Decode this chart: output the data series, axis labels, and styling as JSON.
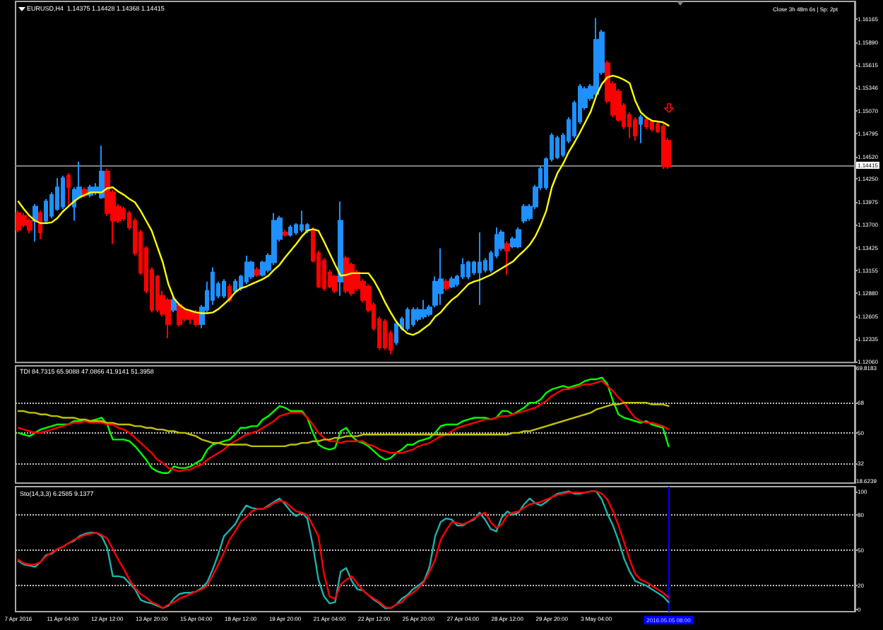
{
  "chart_data": [
    {
      "type": "candlestick",
      "title": "EURUSD,H4  1.14375 1.14428 1.14368 1.14415",
      "categories": [
        null,
        null,
        null,
        null,
        null,
        null,
        null,
        null,
        null,
        null,
        null,
        null,
        null,
        null,
        null,
        null,
        null,
        null,
        null,
        null,
        null,
        null,
        null,
        null,
        null,
        null,
        null,
        null,
        null,
        null,
        null,
        null,
        null,
        null,
        null,
        null,
        null,
        null,
        null,
        null,
        null,
        null,
        null,
        null,
        null,
        null,
        null,
        null,
        null,
        null,
        null,
        null,
        null,
        null,
        null,
        null,
        null,
        null,
        null,
        null,
        null,
        null,
        null,
        null,
        null,
        null,
        null,
        null,
        null,
        null,
        null,
        null,
        null,
        null,
        null,
        null,
        null,
        null,
        null,
        null,
        null,
        null,
        null,
        null,
        null,
        null,
        null,
        null,
        null,
        null,
        null,
        null,
        null,
        null,
        null,
        null,
        null,
        null,
        null,
        null,
        null,
        null,
        null,
        null,
        null,
        null,
        null,
        null,
        null,
        null,
        null,
        null,
        null,
        null,
        null,
        null,
        null,
        null
      ],
      "ohlc": [
        [
          1.1384,
          1.1387,
          1.1361,
          1.1364
        ],
        [
          1.1381,
          1.1384,
          1.1367,
          1.137
        ],
        [
          1.1375,
          1.1378,
          1.136,
          1.1364
        ],
        [
          1.1375,
          1.1395,
          1.135,
          1.1392
        ],
        [
          1.1384,
          1.1387,
          1.1353,
          1.1361
        ],
        [
          1.1375,
          1.1401,
          1.1372,
          1.1398
        ],
        [
          1.1381,
          1.1409,
          1.1378,
          1.1406
        ],
        [
          1.1389,
          1.1426,
          1.1387,
          1.1415
        ],
        [
          1.1392,
          1.1429,
          1.1389,
          1.1426
        ],
        [
          1.1429,
          1.1432,
          1.1392,
          1.1415
        ],
        [
          1.1392,
          1.1415,
          1.1375,
          1.1412
        ],
        [
          1.1403,
          1.1446,
          1.1401,
          1.1415
        ],
        [
          1.1412,
          1.1415,
          1.1403,
          1.1406
        ],
        [
          1.1406,
          1.1418,
          1.1403,
          1.1415
        ],
        [
          1.1409,
          1.142,
          1.1406,
          1.1415
        ],
        [
          1.1403,
          1.1465,
          1.1401,
          1.1434
        ],
        [
          1.1434,
          1.1437,
          1.1381,
          1.1384
        ],
        [
          1.1409,
          1.1412,
          1.1347,
          1.1375
        ],
        [
          1.1392,
          1.1395,
          1.1372,
          1.1375
        ],
        [
          1.1389,
          1.1392,
          1.1375,
          1.1378
        ],
        [
          1.1384,
          1.1387,
          1.1364,
          1.1367
        ],
        [
          1.1375,
          1.1378,
          1.1333,
          1.1336
        ],
        [
          1.1361,
          1.1364,
          1.131,
          1.1313
        ],
        [
          1.1342,
          1.1344,
          1.1288,
          1.1291
        ],
        [
          1.1316,
          1.1319,
          1.1265,
          1.1268
        ],
        [
          1.1308,
          1.131,
          1.1265,
          1.1268
        ],
        [
          1.1285,
          1.1291,
          1.126,
          1.1263
        ],
        [
          1.128,
          1.1282,
          1.1234,
          1.1251
        ],
        [
          1.1268,
          1.1285,
          1.1265,
          1.128
        ],
        [
          1.1274,
          1.1277,
          1.1248,
          1.1251
        ],
        [
          1.1268,
          1.1271,
          1.1254,
          1.1257
        ],
        [
          1.1265,
          1.1268,
          1.1251,
          1.1257
        ],
        [
          1.1265,
          1.1268,
          1.1248,
          1.1251
        ],
        [
          1.1251,
          1.1274,
          1.1246,
          1.1271
        ],
        [
          1.1268,
          1.1302,
          1.1265,
          1.1291
        ],
        [
          1.128,
          1.1319,
          1.1274,
          1.1313
        ],
        [
          1.1285,
          1.1302,
          1.1282,
          1.1299
        ],
        [
          1.1285,
          1.1305,
          1.1282,
          1.1302
        ],
        [
          1.1296,
          1.1299,
          1.1277,
          1.128
        ],
        [
          1.1291,
          1.1305,
          1.1288,
          1.1302
        ],
        [
          1.1294,
          1.131,
          1.1291,
          1.1308
        ],
        [
          1.1302,
          1.1333,
          1.1299,
          1.1325
        ],
        [
          1.1308,
          1.1327,
          1.1305,
          1.1325
        ],
        [
          1.1316,
          1.1319,
          1.1308,
          1.131
        ],
        [
          1.131,
          1.1327,
          1.1308,
          1.1325
        ],
        [
          1.1316,
          1.1336,
          1.1313,
          1.1333
        ],
        [
          1.1325,
          1.1384,
          1.1322,
          1.1375
        ],
        [
          1.1353,
          1.1381,
          1.135,
          1.1378
        ],
        [
          1.1361,
          1.1364,
          1.1356,
          1.1358
        ],
        [
          1.1358,
          1.137,
          1.1356,
          1.1367
        ],
        [
          1.1361,
          1.1372,
          1.1358,
          1.137
        ],
        [
          1.1364,
          1.1387,
          1.1361,
          1.137
        ],
        [
          1.1363,
          1.1372,
          1.136,
          1.137
        ],
        [
          1.1364,
          1.1367,
          1.1325,
          1.1327
        ],
        [
          1.1336,
          1.1339,
          1.1294,
          1.1296
        ],
        [
          1.1327,
          1.133,
          1.1291,
          1.1294
        ],
        [
          1.1313,
          1.1316,
          1.1294,
          1.1296
        ],
        [
          1.1308,
          1.131,
          1.1288,
          1.1291
        ],
        [
          1.1302,
          1.1398,
          1.1285,
          1.1375
        ],
        [
          1.133,
          1.1333,
          1.1288,
          1.1291
        ],
        [
          1.1322,
          1.1325,
          1.1285,
          1.1288
        ],
        [
          1.1313,
          1.1316,
          1.1291,
          1.1294
        ],
        [
          1.1302,
          1.1305,
          1.1277,
          1.128
        ],
        [
          1.1296,
          1.1299,
          1.1265,
          1.1268
        ],
        [
          1.1274,
          1.1277,
          1.1243,
          1.1246
        ],
        [
          1.1257,
          1.126,
          1.122,
          1.1223
        ],
        [
          1.1254,
          1.1257,
          1.122,
          1.1223
        ],
        [
          1.124,
          1.1243,
          1.1215,
          1.122
        ],
        [
          1.1229,
          1.1254,
          1.1226,
          1.1251
        ],
        [
          1.1246,
          1.126,
          1.1243,
          1.1257
        ],
        [
          1.1246,
          1.1271,
          1.1243,
          1.1268
        ],
        [
          1.1251,
          1.1271,
          1.1248,
          1.1268
        ],
        [
          1.1257,
          1.1271,
          1.1254,
          1.1268
        ],
        [
          1.126,
          1.128,
          1.1257,
          1.1268
        ],
        [
          1.1263,
          1.1274,
          1.126,
          1.1271
        ],
        [
          1.1274,
          1.1308,
          1.1271,
          1.1302
        ],
        [
          1.1288,
          1.1342,
          1.1274,
          1.1305
        ],
        [
          1.1302,
          1.1305,
          1.1291,
          1.1294
        ],
        [
          1.1296,
          1.1308,
          1.1294,
          1.1305
        ],
        [
          1.1299,
          1.131,
          1.1296,
          1.1308
        ],
        [
          1.1308,
          1.133,
          1.1305,
          1.1322
        ],
        [
          1.1308,
          1.1327,
          1.1305,
          1.1325
        ],
        [
          1.1313,
          1.1327,
          1.131,
          1.1325
        ],
        [
          1.1313,
          1.1361,
          1.1274,
          1.1325
        ],
        [
          1.1316,
          1.133,
          1.1313,
          1.1327
        ],
        [
          1.1316,
          1.1339,
          1.1313,
          1.1336
        ],
        [
          1.1333,
          1.1367,
          1.133,
          1.1358
        ],
        [
          1.1342,
          1.1364,
          1.1339,
          1.1361
        ],
        [
          1.1347,
          1.135,
          1.131,
          1.1339
        ],
        [
          1.1344,
          1.1356,
          1.1342,
          1.1353
        ],
        [
          1.1344,
          1.1367,
          1.1342,
          1.1364
        ],
        [
          1.1375,
          1.1395,
          1.1372,
          1.1392
        ],
        [
          1.1378,
          1.1395,
          1.1375,
          1.1392
        ],
        [
          1.1392,
          1.1418,
          1.1389,
          1.1415
        ],
        [
          1.1415,
          1.144,
          1.1412,
          1.1437
        ],
        [
          1.1415,
          1.1451,
          1.1412,
          1.1449
        ],
        [
          1.1449,
          1.148,
          1.1446,
          1.1477
        ],
        [
          1.1451,
          1.1477,
          1.1449,
          1.1474
        ],
        [
          1.1454,
          1.148,
          1.1451,
          1.1477
        ],
        [
          1.1471,
          1.1499,
          1.1468,
          1.1496
        ],
        [
          1.1477,
          1.1519,
          1.1474,
          1.1516
        ],
        [
          1.1494,
          1.1539,
          1.1491,
          1.1536
        ],
        [
          1.1511,
          1.1536,
          1.1508,
          1.1533
        ],
        [
          1.1522,
          1.1539,
          1.1519,
          1.1536
        ],
        [
          1.1527,
          1.1618,
          1.1525,
          1.1592
        ],
        [
          1.1553,
          1.1604,
          1.155,
          1.1601
        ],
        [
          1.1564,
          1.1567,
          1.1516,
          1.1519
        ],
        [
          1.1539,
          1.1542,
          1.1499,
          1.1502
        ],
        [
          1.153,
          1.1533,
          1.1494,
          1.1496
        ],
        [
          1.1513,
          1.1516,
          1.1485,
          1.1488
        ],
        [
          1.1502,
          1.1505,
          1.1474,
          1.1488
        ],
        [
          1.1496,
          1.1499,
          1.1471,
          1.1477
        ],
        [
          1.1491,
          1.1502,
          1.1468,
          1.1499
        ],
        [
          1.1496,
          1.1499,
          1.1485,
          1.1488
        ],
        [
          1.1494,
          1.1496,
          1.1482,
          1.1485
        ],
        [
          1.1491,
          1.1494,
          1.148,
          1.1482
        ],
        [
          1.1488,
          1.1491,
          1.1437,
          1.144
        ],
        [
          1.1471,
          1.1474,
          1.1437,
          1.144
        ]
      ],
      "colors": [
        "#ff0000",
        "#ff0000",
        "#ff0000",
        "#1e90ff",
        "#ff0000",
        "#1e90ff",
        "#1e90ff",
        "#1e90ff",
        "#1e90ff",
        "#ff0000",
        "#1e90ff",
        "#1e90ff",
        "#ff0000",
        "#1e90ff",
        "#1e90ff",
        "#1e90ff",
        "#ff0000",
        "#ff0000",
        "#ff0000",
        "#ff0000",
        "#ff0000",
        "#ff0000",
        "#ff0000",
        "#ff0000",
        "#ff0000",
        "#ff0000",
        "#ff0000",
        "#ff0000",
        "#1e90ff",
        "#ff0000",
        "#ff0000",
        "#ff0000",
        "#ff0000",
        "#1e90ff",
        "#1e90ff",
        "#1e90ff",
        "#1e90ff",
        "#1e90ff",
        "#ff0000",
        "#1e90ff",
        "#1e90ff",
        "#1e90ff",
        "#1e90ff",
        "#ff0000",
        "#1e90ff",
        "#1e90ff",
        "#1e90ff",
        "#1e90ff",
        "#ff0000",
        "#1e90ff",
        "#1e90ff",
        "#1e90ff",
        "#1e90ff",
        "#ff0000",
        "#ff0000",
        "#ff0000",
        "#ff0000",
        "#ff0000",
        "#1e90ff",
        "#ff0000",
        "#ff0000",
        "#ff0000",
        "#ff0000",
        "#ff0000",
        "#ff0000",
        "#ff0000",
        "#ff0000",
        "#ff0000",
        "#1e90ff",
        "#1e90ff",
        "#1e90ff",
        "#1e90ff",
        "#1e90ff",
        "#1e90ff",
        "#1e90ff",
        "#1e90ff",
        "#1e90ff",
        "#ff0000",
        "#1e90ff",
        "#1e90ff",
        "#1e90ff",
        "#1e90ff",
        "#1e90ff",
        "#1e90ff",
        "#1e90ff",
        "#1e90ff",
        "#1e90ff",
        "#1e90ff",
        "#ff0000",
        "#1e90ff",
        "#1e90ff",
        "#1e90ff",
        "#1e90ff",
        "#1e90ff",
        "#1e90ff",
        "#1e90ff",
        "#1e90ff",
        "#1e90ff",
        "#1e90ff",
        "#1e90ff",
        "#1e90ff",
        "#1e90ff",
        "#1e90ff",
        "#1e90ff",
        "#1e90ff",
        "#1e90ff",
        "#ff0000",
        "#ff0000",
        "#ff0000",
        "#ff0000",
        "#ff0000",
        "#ff0000",
        "#1e90ff",
        "#ff0000",
        "#ff0000",
        "#ff0000",
        "#ff0000",
        "#ff0000"
      ],
      "series": [
        {
          "type": "line",
          "color": "#ffff00",
          "values": [
            1.1398,
            1.1389,
            1.1381,
            1.1375,
            1.1372,
            1.1372,
            1.1373,
            1.1378,
            1.1386,
            1.1392,
            1.1398,
            1.1403,
            1.1406,
            1.1409,
            1.1409,
            1.1409,
            1.1414,
            1.1415,
            1.141,
            1.1406,
            1.1401,
            1.1397,
            1.1387,
            1.1375,
            1.1363,
            1.1344,
            1.1325,
            1.1299,
            1.1282,
            1.1274,
            1.1269,
            1.1267,
            1.1265,
            1.1264,
            1.1264,
            1.1265,
            1.1269,
            1.1275,
            1.1281,
            1.1289,
            1.1294,
            1.1296,
            1.1299,
            1.1302,
            1.1305,
            1.1309,
            1.1316,
            1.1322,
            1.1331,
            1.1339,
            1.1347,
            1.1356,
            1.1363,
            1.1365,
            1.1363,
            1.135,
            1.1336,
            1.1322,
            1.1309,
            1.131,
            1.1312,
            1.1312,
            1.1312,
            1.1312,
            1.1303,
            1.1291,
            1.1277,
            1.1265,
            1.1254,
            1.1246,
            1.124,
            1.1238,
            1.1241,
            1.1246,
            1.1251,
            1.126,
            1.1265,
            1.1273,
            1.128,
            1.1285,
            1.1292,
            1.1299,
            1.1302,
            1.1304,
            1.1307,
            1.131,
            1.1314,
            1.1318,
            1.1322,
            1.1326,
            1.1333,
            1.1339,
            1.1346,
            1.1356,
            1.137,
            1.1387,
            1.1415,
            1.1432,
            1.1443,
            1.1457,
            1.1468,
            1.148,
            1.1493,
            1.1506,
            1.1525,
            1.1539,
            1.1547,
            1.1549,
            1.1547,
            1.1544,
            1.154,
            1.1519,
            1.1505,
            1.1499,
            1.1495,
            1.1494,
            1.1493,
            1.1489
          ]
        }
      ],
      "ylim": [
        1.1205,
        1.1638
      ],
      "yticks": [
        1.16165,
        {
          "value": 1.1589,
          "label": "1.15890"
        },
        1.15615,
        1.15346,
        {
          "value": 1.1507,
          "label": "1.15070"
        },
        1.14795,
        {
          "value": 1.1452,
          "label": "1.14520"
        },
        {
          "value": 1.1425,
          "label": "1.14250"
        },
        1.13975,
        {
          "value": 1.137,
          "label": "1.13700"
        },
        1.13425,
        1.13155,
        {
          "value": 1.1288,
          "label": "1.12880"
        },
        1.12605,
        1.12335,
        {
          "value": 1.1206,
          "label": "1.12060"
        }
      ],
      "ref_lines": [
        {
          "axis": "y",
          "value": 1.14415,
          "label": "1.14415",
          "color": "#808080"
        }
      ],
      "annotations": [
        "Close 3h 48m 6s | Sp: 2pt"
      ],
      "tick_labels": "y"
    },
    {
      "type": "line",
      "title": "TDI 84.7315 65.9088 47.0866 41.9141 51.3958",
      "categories": [
        null,
        null,
        null,
        null,
        null,
        null,
        null,
        null,
        null,
        null,
        null,
        null,
        null,
        null,
        null,
        null,
        null,
        null,
        null,
        null,
        null,
        null,
        null,
        null,
        null,
        null,
        null,
        null,
        null,
        null,
        null,
        null,
        null,
        null,
        null,
        null,
        null,
        null,
        null,
        null,
        null,
        null,
        null,
        null,
        null,
        null,
        null,
        null,
        null,
        null,
        null,
        null,
        null,
        null,
        null,
        null,
        null,
        null,
        null,
        null,
        null,
        null,
        null,
        null,
        null,
        null,
        null,
        null,
        null,
        null,
        null,
        null,
        null,
        null,
        null,
        null,
        null,
        null,
        null,
        null,
        null,
        null,
        null,
        null,
        null,
        null,
        null,
        null,
        null,
        null,
        null,
        null,
        null,
        null,
        null,
        null,
        null,
        null,
        null,
        null,
        null,
        null,
        null,
        null,
        null,
        null,
        null,
        null,
        null,
        null,
        null,
        null,
        null,
        null,
        null,
        null,
        null,
        null
      ],
      "series": [
        {
          "color": "#00ff00",
          "values": [
            50,
            49,
            48,
            50,
            52,
            53,
            54,
            55,
            55,
            55,
            57,
            57,
            57,
            57,
            58,
            59,
            55,
            46,
            46,
            46,
            45,
            42,
            38,
            34,
            29,
            27,
            26,
            26,
            30,
            29,
            29,
            30,
            32,
            34,
            40,
            43,
            44,
            45,
            46,
            49,
            53,
            53,
            54,
            54,
            58,
            60,
            63,
            66,
            65,
            63,
            63,
            63,
            59,
            50,
            43,
            41,
            40,
            41,
            51,
            53,
            48,
            45,
            44,
            42,
            39,
            36,
            34,
            35,
            38,
            40,
            43,
            43,
            45,
            46,
            47,
            50,
            54,
            55,
            55,
            55,
            57,
            58,
            59,
            59,
            59,
            58,
            59,
            63,
            63,
            61,
            63,
            65,
            68,
            68,
            70,
            74,
            76,
            77,
            78,
            77,
            78,
            79,
            81,
            82,
            82,
            83,
            79,
            69,
            61,
            59,
            58,
            57,
            56,
            57,
            55,
            54,
            53,
            42
          ]
        },
        {
          "color": "#ff0000",
          "values": [
            53,
            52,
            51,
            50,
            50,
            51,
            52,
            53,
            54,
            55,
            56,
            56,
            57,
            56,
            56,
            56,
            55,
            55,
            53,
            52,
            50,
            47,
            44,
            41,
            38,
            34,
            32,
            29,
            28,
            27,
            28,
            28,
            30,
            31,
            34,
            36,
            38,
            40,
            43,
            45,
            47,
            49,
            50,
            51,
            53,
            55,
            57,
            60,
            61,
            62,
            62,
            62,
            59,
            55,
            50,
            47,
            45,
            45,
            44,
            45,
            45,
            45,
            45,
            43,
            42,
            40,
            39,
            38,
            38,
            38,
            39,
            40,
            42,
            43,
            44,
            46,
            48,
            49,
            51,
            53,
            54,
            55,
            56,
            57,
            58,
            58,
            59,
            60,
            60,
            61,
            62,
            63,
            64,
            65,
            67,
            69,
            72,
            74,
            76,
            76,
            77,
            78,
            79,
            79,
            80,
            81,
            78,
            75,
            71,
            68,
            63,
            59,
            57,
            56,
            56,
            55,
            54,
            52
          ]
        },
        {
          "color": "#c0c000",
          "values": [
            63,
            63,
            62,
            62,
            61,
            61,
            60,
            60,
            59,
            59,
            59,
            58,
            58,
            57,
            57,
            57,
            56,
            56,
            55,
            55,
            55,
            54,
            54,
            53,
            53,
            52,
            52,
            51,
            51,
            50,
            50,
            49,
            48,
            46,
            45,
            44,
            44,
            43,
            43,
            43,
            43,
            43,
            42,
            42,
            42,
            42,
            42,
            42,
            42,
            43,
            43,
            44,
            44,
            45,
            45,
            46,
            46,
            47,
            47,
            48,
            48,
            48,
            49,
            49,
            49,
            49,
            49,
            49,
            49,
            49,
            49,
            49,
            49,
            49,
            49,
            49,
            49,
            49,
            49,
            49,
            49,
            49,
            49,
            49,
            49,
            49,
            49,
            49,
            49,
            50,
            50,
            51,
            51,
            52,
            53,
            54,
            55,
            56,
            57,
            58,
            59,
            60,
            61,
            62,
            64,
            65,
            66,
            67,
            67,
            68,
            68,
            68,
            68,
            68,
            67,
            67,
            67,
            66
          ]
        }
      ],
      "ylim": [
        20,
        90
      ],
      "yticks": [
        68,
        50,
        32
      ],
      "ref_lines": [
        {
          "axis": "y",
          "value": 68,
          "color": "#c0c0c0",
          "line_style": "dotted"
        },
        {
          "axis": "y",
          "value": 50,
          "color": "#c0c0c0",
          "line_style": "dotted"
        },
        {
          "axis": "y",
          "value": 32,
          "color": "#c0c0c0",
          "line_style": "dotted"
        }
      ],
      "annotations": [
        "69.8183",
        "18.6239"
      ],
      "tick_labels": "y"
    },
    {
      "type": "line",
      "title": "Sto(14,3,3) 6.2585 9.1377",
      "categories": [
        "7 Apr 2016",
        null,
        null,
        null,
        null,
        null,
        null,
        null,
        "11 Apr 04:00",
        null,
        null,
        null,
        null,
        null,
        null,
        null,
        "12 Apr 12:00",
        null,
        null,
        null,
        null,
        null,
        null,
        null,
        "13 Apr 20:00",
        null,
        null,
        null,
        null,
        null,
        null,
        null,
        "15 Apr 04:00",
        null,
        null,
        null,
        null,
        null,
        null,
        null,
        "18 Apr 12:00",
        null,
        null,
        null,
        null,
        null,
        null,
        null,
        "19 Apr 20:00",
        null,
        null,
        null,
        null,
        null,
        null,
        null,
        "21 Apr 04:00",
        null,
        null,
        null,
        null,
        null,
        null,
        null,
        "22 Apr 12:00",
        null,
        null,
        null,
        null,
        null,
        null,
        null,
        "25 Apr 20:00",
        null,
        null,
        null,
        null,
        null,
        null,
        null,
        "27 Apr 04:00",
        null,
        null,
        null,
        null,
        null,
        null,
        null,
        "28 Apr 12:00",
        null,
        null,
        null,
        null,
        null,
        null,
        null,
        "29 Apr 20:00",
        null,
        null,
        null,
        null,
        null,
        null,
        null,
        "3 May 04:00",
        null,
        null,
        null,
        null,
        null,
        null,
        null,
        null,
        null,
        null,
        null,
        null,
        "2016.05.05 08:00"
      ],
      "series": [
        {
          "color": "#20b2aa",
          "values": [
            41,
            38,
            37,
            36,
            40,
            46,
            47,
            51,
            53,
            56,
            58,
            62,
            64,
            65,
            65,
            62,
            52,
            28,
            28,
            27,
            22,
            17,
            8,
            6,
            5,
            3,
            1,
            3,
            9,
            13,
            14,
            14,
            15,
            18,
            23,
            34,
            47,
            62,
            67,
            72,
            81,
            88,
            86,
            85,
            85,
            88,
            91,
            94,
            89,
            83,
            79,
            82,
            77,
            54,
            25,
            11,
            5,
            6,
            32,
            35,
            24,
            17,
            16,
            12,
            8,
            5,
            1,
            1,
            4,
            9,
            12,
            17,
            20,
            24,
            36,
            62,
            74,
            77,
            76,
            71,
            71,
            74,
            76,
            82,
            76,
            68,
            66,
            78,
            83,
            80,
            82,
            89,
            94,
            90,
            88,
            91,
            95,
            98,
            99,
            100,
            98,
            98,
            99,
            100,
            100,
            93,
            81,
            71,
            58,
            43,
            32,
            24,
            22,
            20,
            17,
            14,
            11,
            6
          ]
        },
        {
          "color": "#ff0000",
          "values": [
            42,
            39,
            38,
            38,
            40,
            45,
            48,
            51,
            53,
            56,
            59,
            61,
            63,
            64,
            65,
            63,
            60,
            51,
            42,
            34,
            25,
            18,
            13,
            10,
            6,
            4,
            1,
            4,
            6,
            9,
            11,
            13,
            15,
            17,
            20,
            29,
            38,
            48,
            59,
            66,
            74,
            78,
            83,
            85,
            85,
            87,
            90,
            92,
            91,
            87,
            83,
            82,
            80,
            71,
            62,
            30,
            11,
            9,
            21,
            25,
            28,
            22,
            16,
            12,
            9,
            6,
            2,
            1,
            4,
            6,
            11,
            14,
            18,
            23,
            32,
            42,
            59,
            67,
            74,
            73,
            72,
            74,
            77,
            80,
            82,
            74,
            69,
            72,
            80,
            82,
            83,
            86,
            89,
            90,
            91,
            93,
            95,
            97,
            98,
            99,
            99,
            99,
            99,
            100,
            100,
            98,
            93,
            83,
            71,
            57,
            42,
            30,
            25,
            23,
            20,
            17,
            14,
            10
          ]
        }
      ],
      "ylim": [
        -2,
        104
      ],
      "yticks": [
        100,
        80,
        50,
        20,
        0
      ],
      "ref_lines": [
        {
          "axis": "y",
          "value": 80,
          "color": "#c0c0c0",
          "line_style": "dotted"
        },
        {
          "axis": "y",
          "value": 50,
          "color": "#c0c0c0",
          "line_style": "dotted"
        },
        {
          "axis": "y",
          "value": 20,
          "color": "#c0c0c0",
          "line_style": "dotted"
        },
        {
          "axis": "x",
          "value": "2016.05.05 08:00",
          "color": "#0000ff"
        }
      ]
    }
  ]
}
